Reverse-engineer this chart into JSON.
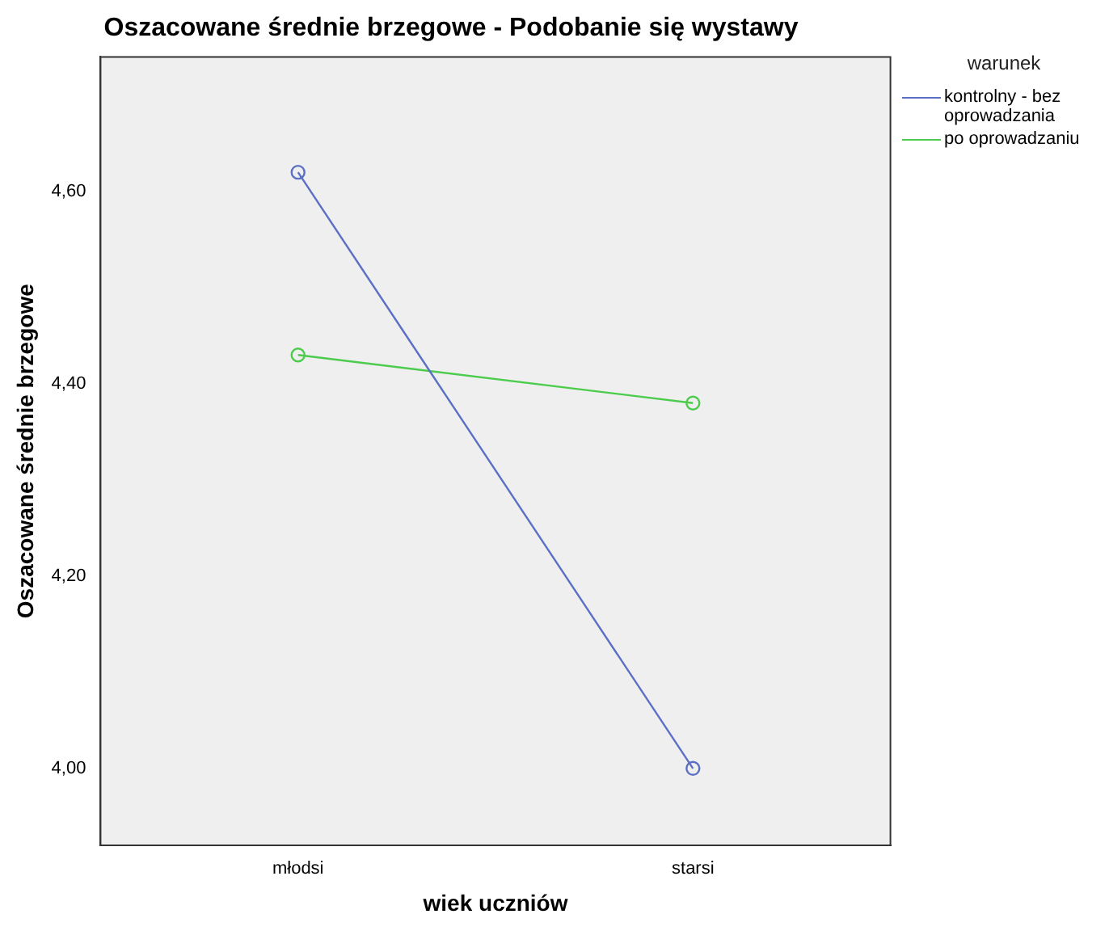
{
  "chart_data": {
    "type": "line",
    "title": "Oszacowane średnie brzegowe - Podobanie się wystawy",
    "xlabel": "wiek uczniów",
    "ylabel": "Oszacowane średnie brzegowe",
    "legend_title": "warunek",
    "categories": [
      "młodsi",
      "starsi"
    ],
    "series": [
      {
        "name": "kontrolny - bez oprowadzania",
        "color": "#5b6fc4",
        "values": [
          4.62,
          4.0
        ]
      },
      {
        "name": "po oprowadzaniu",
        "color": "#4ccc4c",
        "values": [
          4.43,
          4.38
        ]
      }
    ],
    "ylim": [
      3.92,
      4.74
    ],
    "yticks": [
      {
        "value": 4.0,
        "label": "4,00"
      },
      {
        "value": 4.2,
        "label": "4,20"
      },
      {
        "value": 4.4,
        "label": "4,40"
      },
      {
        "value": 4.6,
        "label": "4,60"
      }
    ],
    "grid": false,
    "legend": "top right",
    "marker": "circle",
    "line_style": "solid"
  }
}
